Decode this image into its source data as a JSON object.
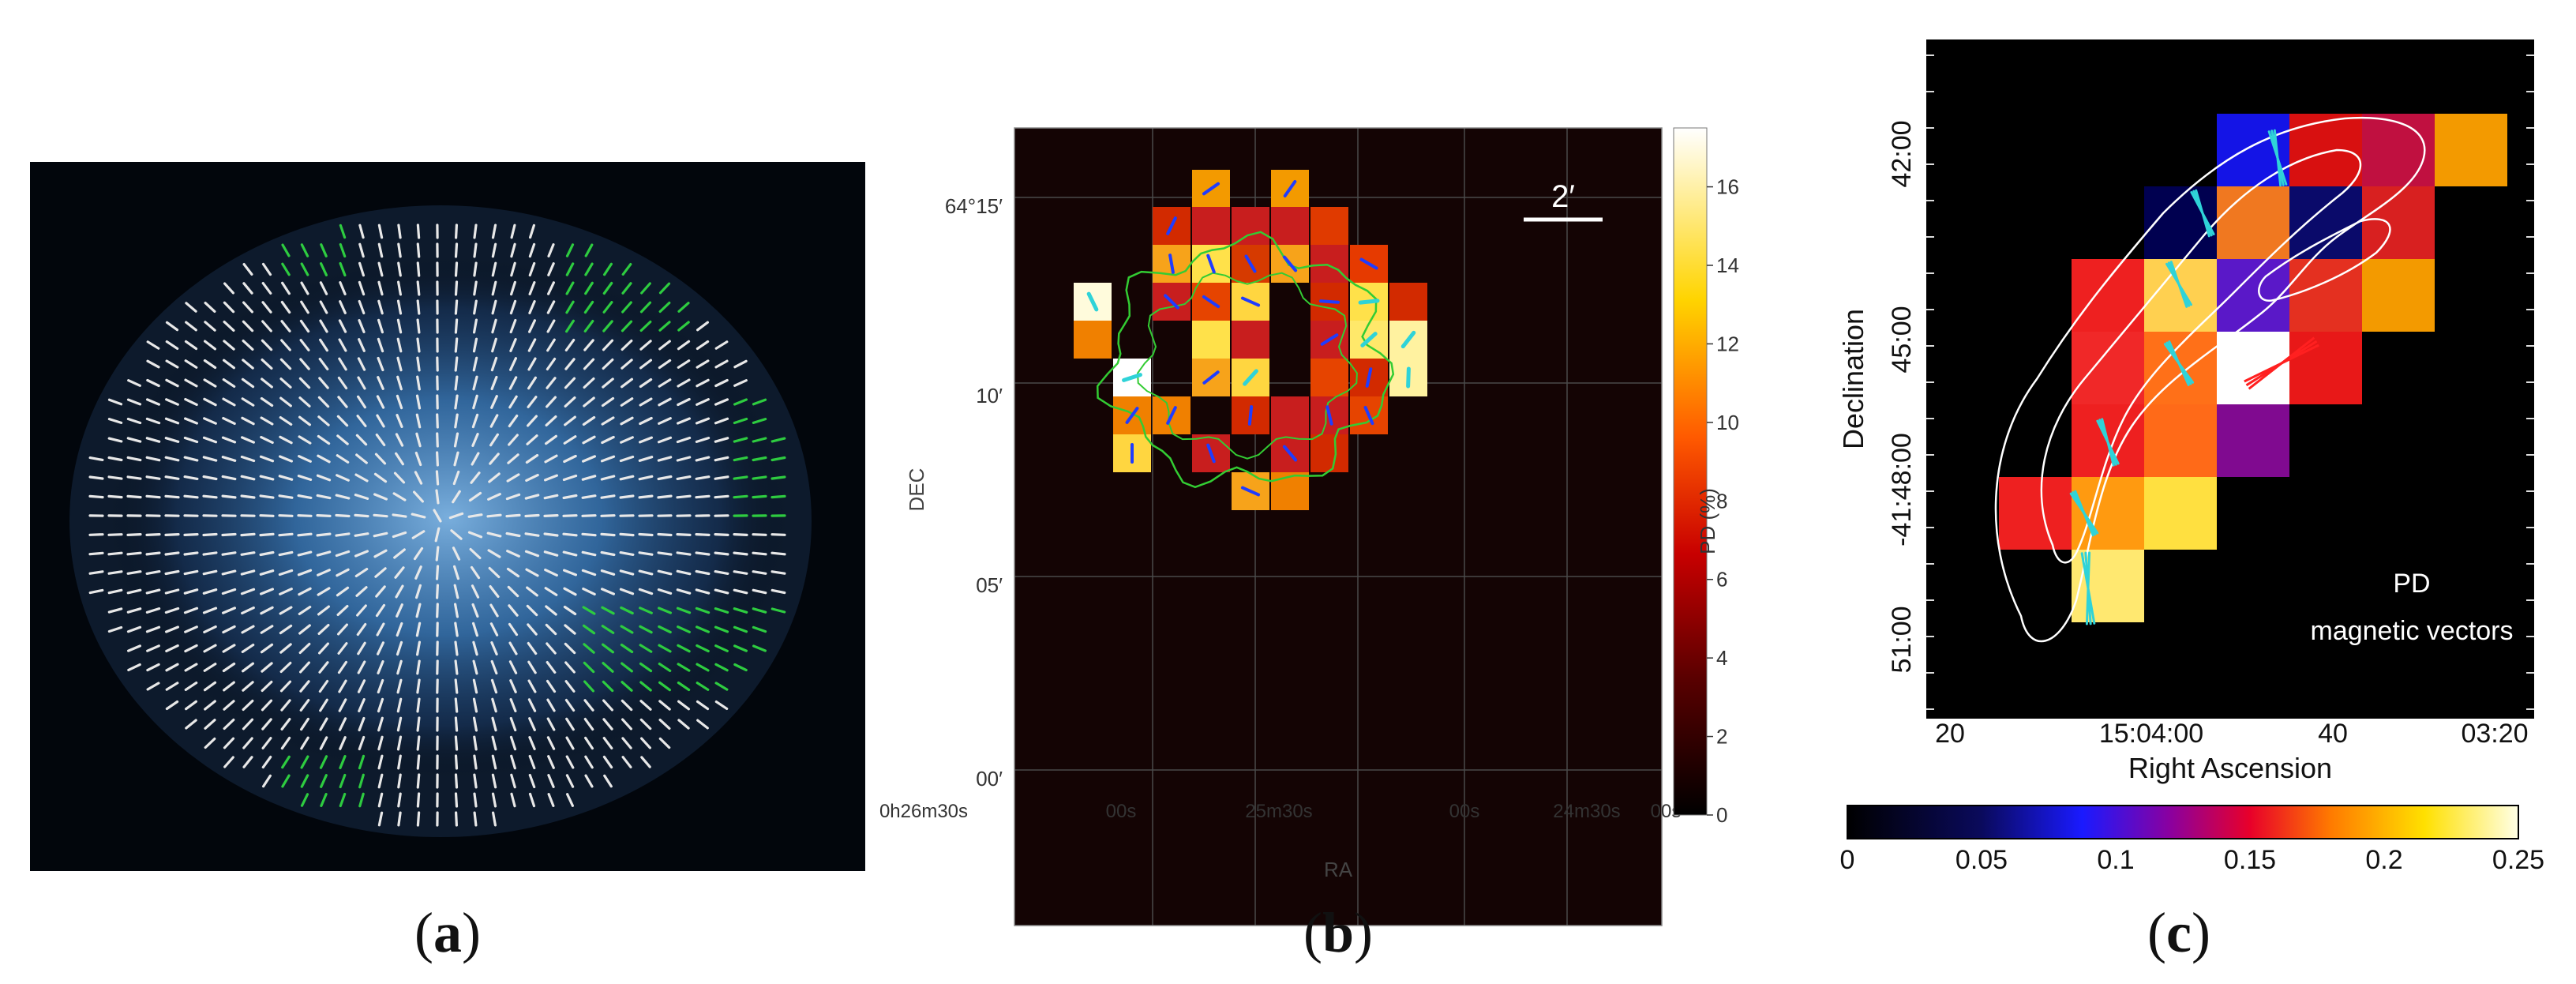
{
  "panels": [
    {
      "id": "a",
      "caption": "a"
    },
    {
      "id": "b",
      "caption": "b",
      "x_label": "RA",
      "y_label": "DEC",
      "x_ticks": [
        "0h26m30s",
        "00s",
        "25m30s",
        "00s",
        "24m30s",
        "00s"
      ],
      "y_ticks": [
        "64°15′",
        "10′",
        "05′",
        "00′"
      ],
      "scale_bar": "2′",
      "colorbar": {
        "label": "PD (%)",
        "ticks": [
          "0",
          "2",
          "4",
          "6",
          "8",
          "10",
          "12",
          "14",
          "16"
        ],
        "min": 0,
        "max": 17.5
      }
    },
    {
      "id": "c",
      "caption": "c",
      "x_label": "Right Ascension",
      "y_label": "Declination",
      "x_ticks": [
        "20",
        "15:04:00",
        "40",
        "03:20"
      ],
      "y_ticks": [
        "42:00",
        "45:00",
        "-41:48:00",
        "51:00"
      ],
      "legend_lines": [
        "PD",
        "magnetic vectors"
      ],
      "colorbar": {
        "ticks": [
          "0",
          "0.05",
          "0.1",
          "0.15",
          "0.2",
          "0.25"
        ],
        "min": 0,
        "max": 0.25
      }
    }
  ],
  "colors": {
    "background": "#000000",
    "map_bg": "#140404",
    "vector_white": "#e8e8e8",
    "vector_green": "#2ecc40",
    "contour_green": "#33cc33",
    "vector_blue": "#1f3cff",
    "vector_cyan": "#2fd3d8"
  }
}
